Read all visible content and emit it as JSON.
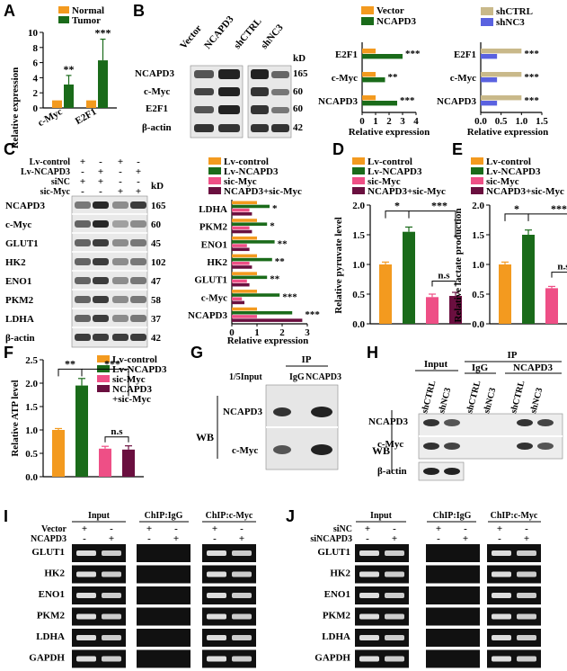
{
  "colors": {
    "orange": "#f39a1f",
    "green": "#1a6b1a",
    "pink": "#ee4f86",
    "purple": "#6a0f3f",
    "tan": "#c9b98a",
    "blue": "#5a62e0"
  },
  "panels": {
    "A": "A",
    "B": "B",
    "C": "C",
    "D": "D",
    "E": "E",
    "F": "F",
    "G": "G",
    "H": "H",
    "I": "I",
    "J": "J"
  },
  "panelA": {
    "legend": [
      "Normal",
      "Tumor"
    ],
    "ylabel": "Relative expression",
    "yticks": [
      "0",
      "2",
      "4",
      "6",
      "8",
      "10"
    ],
    "categories": [
      "c-Myc",
      "E2F1"
    ],
    "sig": [
      "**",
      "***"
    ]
  },
  "panelB": {
    "blot_header": [
      "Vector",
      "NCAPD3",
      "shCTRL",
      "shNC3"
    ],
    "rows": [
      "NCAPD3",
      "c-Myc",
      "E2F1",
      "β-actin"
    ],
    "kd_label": "kD",
    "kd": [
      "165",
      "60",
      "60",
      "42"
    ],
    "chart1_legend": [
      "Vector",
      "NCAPD3"
    ],
    "chart2_legend": [
      "shCTRL",
      "shNC3"
    ],
    "bar_labels": [
      "E2F1",
      "c-Myc",
      "NCAPD3"
    ],
    "chart1_sig": [
      "***",
      "**",
      "***"
    ],
    "chart2_sig": [
      "***",
      "***",
      "***"
    ],
    "chart1_ticks": [
      "0",
      "1",
      "2",
      "3",
      "4"
    ],
    "chart2_ticks": [
      "0.0",
      "0.5",
      "1.0",
      "1.5"
    ],
    "xlabel": "Relative expression"
  },
  "panelC": {
    "treat_labels": [
      "Lv-control",
      "Lv-NCAPD3",
      "siNC",
      "sic-Myc"
    ],
    "treat_signs": [
      [
        "+",
        "-",
        "+",
        "-"
      ],
      [
        "-",
        "+",
        "-",
        "+"
      ],
      [
        "+",
        "+",
        "-",
        "-"
      ],
      [
        "-",
        "-",
        "+",
        "+"
      ]
    ],
    "rows": [
      "NCAPD3",
      "c-Myc",
      "GLUT1",
      "HK2",
      "ENO1",
      "PKM2",
      "LDHA",
      "β-actin"
    ],
    "kd_label": "kD",
    "kd": [
      "165",
      "60",
      "45",
      "102",
      "47",
      "58",
      "37",
      "42"
    ],
    "legend": [
      "Lv-control",
      "Lv-NCAPD3",
      "sic-Myc",
      "NCAPD3+sic-Myc"
    ],
    "bar_labels": [
      "LDHA",
      "PKM2",
      "ENO1",
      "HK2",
      "GLUT1",
      "c-Myc",
      "NCAPD3"
    ],
    "sig": [
      "*",
      "*",
      "**",
      "**",
      "**",
      "***",
      "***"
    ],
    "xticks": [
      "0",
      "1",
      "2",
      "3"
    ],
    "xlabel": "Relative expression"
  },
  "panelD": {
    "legend": [
      "Lv-control",
      "Lv-NCAPD3",
      "sic-Myc",
      "NCAPD3+sic-Myc"
    ],
    "ylabel": "Relative pyruvate level",
    "yticks": [
      "0.0",
      "0.5",
      "1.0",
      "1.5",
      "2.0"
    ],
    "sig": [
      "*",
      "***",
      "n.s"
    ]
  },
  "panelE": {
    "legend": [
      "Lv-control",
      "Lv-NCAPD3",
      "sic-Myc",
      "NCAPD3+sic-Myc"
    ],
    "ylabel": "Relative lactate production",
    "yticks": [
      "0.0",
      "0.5",
      "1.0",
      "1.5",
      "2.0"
    ],
    "sig": [
      "*",
      "***",
      "n.s"
    ]
  },
  "panelF": {
    "legend": [
      "Lv-control",
      "Lv-NCAPD3",
      "sic-Myc",
      "NCAPD3",
      "+sic-Myc"
    ],
    "ylabel": "Relative ATP level",
    "yticks": [
      "0.0",
      "0.5",
      "1.0",
      "1.5",
      "2.0",
      "2.5"
    ],
    "sig": [
      "**",
      "***",
      "n.s"
    ]
  },
  "panelG": {
    "ip": "IP",
    "cols": [
      "1/5Input",
      "IgG",
      "NCAPD3"
    ],
    "wb": "WB",
    "rows": [
      "NCAPD3",
      "c-Myc"
    ]
  },
  "panelH": {
    "input": "Input",
    "ip": "IP",
    "ip_cols": [
      "IgG",
      "NCAPD3"
    ],
    "lanes": [
      "shCTRL",
      "shNC3",
      "shCTRL",
      "shNC3",
      "shCTRL",
      "shNC3"
    ],
    "wb": "WB",
    "rows": [
      "NCAPD3",
      "c-Myc",
      "β-actin"
    ]
  },
  "panelI": {
    "groups": [
      "Input",
      "ChIP:IgG",
      "ChIP:c-Myc"
    ],
    "treat_labels": [
      "Vector",
      "NCAPD3"
    ],
    "signs": [
      [
        "+",
        "-"
      ],
      [
        "-",
        "+"
      ]
    ],
    "rows": [
      "GLUT1",
      "HK2",
      "ENO1",
      "PKM2",
      "LDHA",
      "GAPDH"
    ]
  },
  "panelJ": {
    "groups": [
      "Input",
      "ChIP:IgG",
      "ChIP:c-Myc"
    ],
    "treat_labels": [
      "siNC",
      "siNCAPD3"
    ],
    "signs": [
      [
        "+",
        "-"
      ],
      [
        "-",
        "+"
      ]
    ],
    "rows": [
      "GLUT1",
      "HK2",
      "ENO1",
      "PKM2",
      "LDHA",
      "GAPDH"
    ]
  },
  "chart_data": [
    {
      "type": "bar",
      "id": "A",
      "categories": [
        "c-Myc",
        "E2F1"
      ],
      "series": [
        {
          "name": "Normal",
          "values": [
            1.0,
            1.0
          ]
        },
        {
          "name": "Tumor",
          "values": [
            3.1,
            6.3
          ]
        }
      ],
      "ylabel": "Relative expression",
      "ylim": [
        0,
        10
      ]
    },
    {
      "type": "bar",
      "id": "B1",
      "orientation": "horizontal",
      "categories": [
        "E2F1",
        "c-Myc",
        "NCAPD3"
      ],
      "series": [
        {
          "name": "Vector",
          "values": [
            1.0,
            1.0,
            1.0
          ]
        },
        {
          "name": "NCAPD3",
          "values": [
            3.0,
            1.7,
            2.6
          ]
        }
      ],
      "xlabel": "Relative expression",
      "xlim": [
        0,
        4
      ]
    },
    {
      "type": "bar",
      "id": "B2",
      "orientation": "horizontal",
      "categories": [
        "E2F1",
        "c-Myc",
        "NCAPD3"
      ],
      "series": [
        {
          "name": "shCTRL",
          "values": [
            1.0,
            1.0,
            1.0
          ]
        },
        {
          "name": "shNC3",
          "values": [
            0.4,
            0.4,
            0.4
          ]
        }
      ],
      "xlabel": "Relative expression",
      "xlim": [
        0,
        1.5
      ]
    },
    {
      "type": "bar",
      "id": "C",
      "orientation": "horizontal",
      "categories": [
        "LDHA",
        "PKM2",
        "ENO1",
        "HK2",
        "GLUT1",
        "c-Myc",
        "NCAPD3"
      ],
      "series": [
        {
          "name": "Lv-control",
          "values": [
            1.0,
            1.0,
            1.0,
            1.0,
            1.0,
            1.0,
            1.0
          ]
        },
        {
          "name": "Lv-NCAPD3",
          "values": [
            1.5,
            1.4,
            1.7,
            1.6,
            1.4,
            1.9,
            2.4
          ]
        },
        {
          "name": "sic-Myc",
          "values": [
            0.7,
            0.7,
            0.6,
            0.7,
            0.6,
            0.4,
            1.0
          ]
        },
        {
          "name": "NCAPD3+sic-Myc",
          "values": [
            0.8,
            0.8,
            0.7,
            0.8,
            0.7,
            0.5,
            2.8
          ]
        }
      ],
      "xlabel": "Relative expression",
      "xlim": [
        0,
        3
      ]
    },
    {
      "type": "bar",
      "id": "D",
      "categories": [
        "Lv-control",
        "Lv-NCAPD3",
        "sic-Myc",
        "NCAPD3+sic-Myc"
      ],
      "values": [
        1.0,
        1.55,
        0.45,
        0.47
      ],
      "ylabel": "Relative pyruvate level",
      "ylim": [
        0,
        2.0
      ]
    },
    {
      "type": "bar",
      "id": "E",
      "categories": [
        "Lv-control",
        "Lv-NCAPD3",
        "sic-Myc",
        "NCAPD3+sic-Myc"
      ],
      "values": [
        1.0,
        1.5,
        0.6,
        0.62
      ],
      "ylabel": "Relative lactate production",
      "ylim": [
        0,
        2.0
      ]
    },
    {
      "type": "bar",
      "id": "F",
      "categories": [
        "Lv-control",
        "Lv-NCAPD3",
        "sic-Myc",
        "NCAPD3+sic-Myc"
      ],
      "values": [
        1.0,
        1.95,
        0.6,
        0.58
      ],
      "ylabel": "Relative ATP level",
      "ylim": [
        0,
        2.5
      ]
    }
  ]
}
